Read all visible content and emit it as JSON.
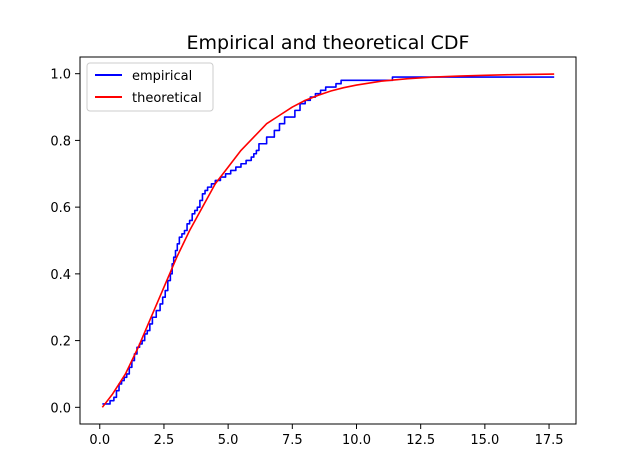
{
  "chart_data": {
    "type": "line",
    "title": "Empirical and theoretical CDF",
    "xlabel": "",
    "ylabel": "",
    "xlim": [
      -0.77,
      18.55
    ],
    "ylim": [
      -0.05,
      1.05
    ],
    "xticks": [
      0.0,
      2.5,
      5.0,
      7.5,
      10.0,
      12.5,
      15.0,
      17.5
    ],
    "xtick_labels": [
      "0.0",
      "2.5",
      "5.0",
      "7.5",
      "10.0",
      "12.5",
      "15.0",
      "17.5"
    ],
    "yticks": [
      0.0,
      0.2,
      0.4,
      0.6,
      0.8,
      1.0
    ],
    "ytick_labels": [
      "0.0",
      "0.2",
      "0.4",
      "0.6",
      "0.8",
      "1.0"
    ],
    "grid": false,
    "legend_position": "top-left",
    "series": [
      {
        "name": "empirical",
        "color": "#0000ff",
        "drawstyle": "steps-post",
        "x": [
          0.1,
          0.4,
          0.55,
          0.65,
          0.75,
          0.85,
          0.95,
          1.05,
          1.15,
          1.25,
          1.35,
          1.45,
          1.55,
          1.65,
          1.75,
          1.85,
          1.95,
          2.05,
          2.2,
          2.35,
          2.45,
          2.55,
          2.65,
          2.75,
          2.82,
          2.88,
          2.95,
          3.02,
          3.1,
          3.2,
          3.3,
          3.4,
          3.5,
          3.6,
          3.7,
          3.8,
          3.9,
          4.0,
          4.1,
          4.2,
          4.35,
          4.5,
          4.7,
          4.9,
          5.1,
          5.3,
          5.5,
          5.7,
          5.9,
          6.0,
          6.1,
          6.2,
          6.5,
          6.8,
          7.0,
          7.2,
          7.6,
          7.8,
          8.0,
          8.2,
          8.4,
          8.6,
          8.8,
          9.2,
          9.4,
          10.5,
          11.4,
          17.7
        ],
        "y": [
          0.01,
          0.02,
          0.03,
          0.05,
          0.07,
          0.08,
          0.09,
          0.1,
          0.12,
          0.14,
          0.16,
          0.18,
          0.19,
          0.2,
          0.22,
          0.23,
          0.25,
          0.27,
          0.29,
          0.31,
          0.33,
          0.35,
          0.38,
          0.4,
          0.43,
          0.45,
          0.47,
          0.49,
          0.51,
          0.52,
          0.53,
          0.55,
          0.56,
          0.58,
          0.59,
          0.6,
          0.62,
          0.64,
          0.65,
          0.66,
          0.67,
          0.68,
          0.69,
          0.7,
          0.71,
          0.72,
          0.73,
          0.74,
          0.75,
          0.76,
          0.77,
          0.79,
          0.81,
          0.83,
          0.85,
          0.87,
          0.89,
          0.91,
          0.92,
          0.93,
          0.94,
          0.95,
          0.96,
          0.97,
          0.98,
          0.98,
          0.99,
          0.99
        ]
      },
      {
        "name": "theoretical",
        "color": "#ff0000",
        "x": [
          0.1,
          0.5,
          1.0,
          1.5,
          2.0,
          2.5,
          3.0,
          3.5,
          4.0,
          4.5,
          5.0,
          5.5,
          6.0,
          6.5,
          7.0,
          7.5,
          8.0,
          8.5,
          9.0,
          9.5,
          10.0,
          11.0,
          12.0,
          13.0,
          14.0,
          15.0,
          16.0,
          17.7
        ],
        "y": [
          0.0,
          0.04,
          0.1,
          0.18,
          0.27,
          0.36,
          0.45,
          0.53,
          0.6,
          0.67,
          0.72,
          0.77,
          0.81,
          0.85,
          0.875,
          0.9,
          0.92,
          0.935,
          0.948,
          0.958,
          0.966,
          0.978,
          0.985,
          0.99,
          0.993,
          0.995,
          0.997,
          0.999
        ]
      }
    ]
  }
}
